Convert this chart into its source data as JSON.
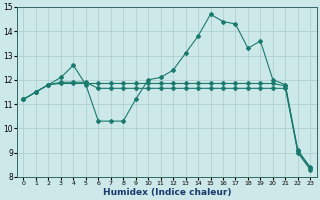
{
  "title": "",
  "xlabel": "Humidex (Indice chaleur)",
  "bg_color": "#cce8e8",
  "line_color": "#1a7a6e",
  "grid_color": "#aacccc",
  "x_values": [
    0,
    1,
    2,
    3,
    4,
    5,
    6,
    7,
    8,
    9,
    10,
    11,
    12,
    13,
    14,
    15,
    16,
    17,
    18,
    19,
    20,
    21,
    22,
    23
  ],
  "y_main": [
    11.2,
    11.5,
    11.8,
    12.1,
    12.6,
    11.8,
    10.3,
    10.3,
    10.3,
    11.2,
    12.0,
    12.1,
    12.4,
    13.1,
    13.8,
    14.7,
    14.4,
    14.3,
    13.3,
    13.6,
    12.0,
    11.8,
    9.1,
    8.4
  ],
  "y_line2": [
    11.2,
    11.5,
    11.8,
    11.85,
    11.85,
    11.85,
    11.85,
    11.85,
    11.85,
    11.85,
    11.85,
    11.85,
    11.85,
    11.85,
    11.85,
    11.85,
    11.85,
    11.85,
    11.85,
    11.85,
    11.85,
    11.75,
    9.0,
    8.3
  ],
  "y_line3": [
    11.2,
    11.5,
    11.8,
    11.9,
    11.9,
    11.9,
    11.65,
    11.65,
    11.65,
    11.65,
    11.65,
    11.65,
    11.65,
    11.65,
    11.65,
    11.65,
    11.65,
    11.65,
    11.65,
    11.65,
    11.65,
    11.65,
    9.05,
    8.35
  ],
  "ylim": [
    8,
    15
  ],
  "yticks": [
    8,
    9,
    10,
    11,
    12,
    13,
    14,
    15
  ],
  "xticks": [
    0,
    1,
    2,
    3,
    4,
    5,
    6,
    7,
    8,
    9,
    10,
    11,
    12,
    13,
    14,
    15,
    16,
    17,
    18,
    19,
    20,
    21,
    22,
    23
  ],
  "marker": "D",
  "markersize": 2.0,
  "linewidth": 0.8
}
